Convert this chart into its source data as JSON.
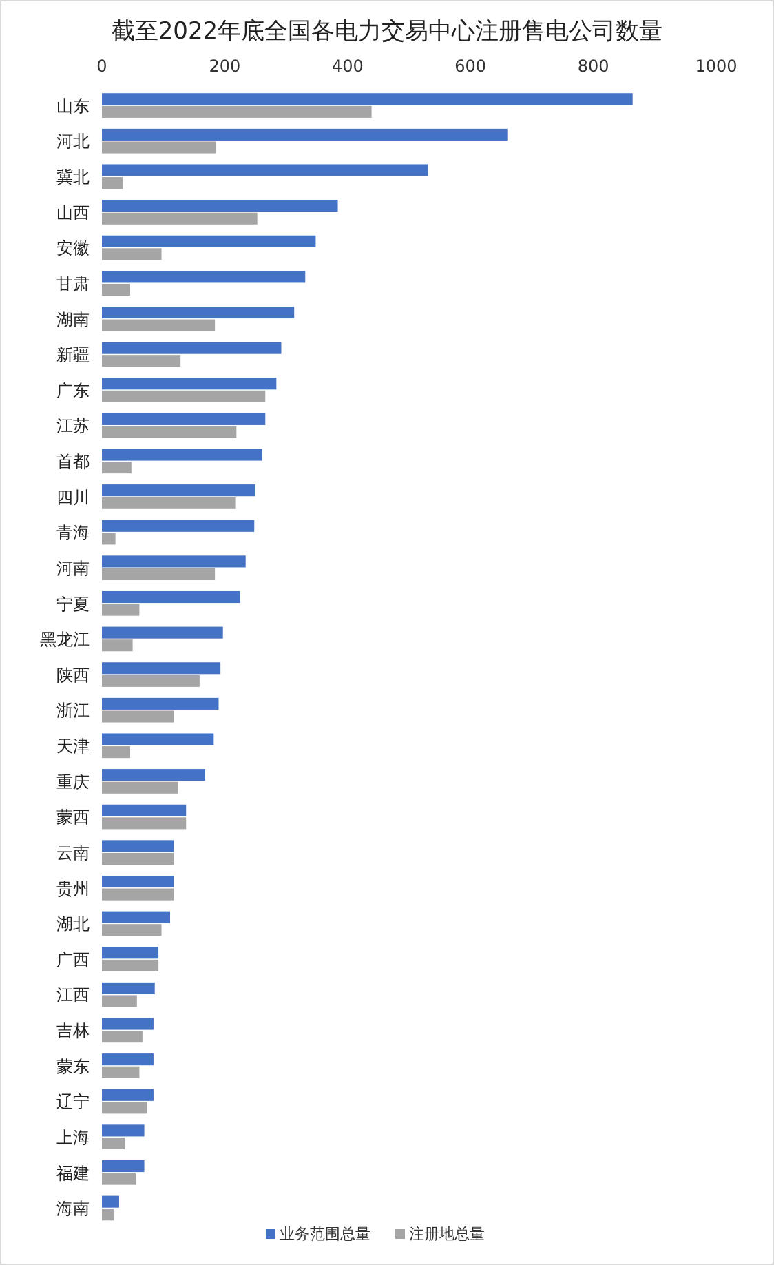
{
  "chart_data": {
    "type": "bar",
    "orientation": "horizontal",
    "title": "截至2022年底全国各电力交易中心注册售电公司数量",
    "categories": [
      "山东",
      "河北",
      "冀北",
      "山西",
      "安徽",
      "甘肃",
      "湖南",
      "新疆",
      "广东",
      "江苏",
      "首都",
      "四川",
      "青海",
      "河南",
      "宁夏",
      "黑龙江",
      "陕西",
      "浙江",
      "天津",
      "重庆",
      "蒙西",
      "云南",
      "贵州",
      "湖北",
      "广西",
      "江西",
      "吉林",
      "蒙东",
      "辽宁",
      "上海",
      "福建",
      "海南"
    ],
    "series": [
      {
        "name": "业务范围总量",
        "color": "#4472c4",
        "values": [
          864,
          660,
          531,
          384,
          348,
          331,
          313,
          292,
          284,
          266,
          261,
          250,
          248,
          234,
          225,
          197,
          193,
          190,
          182,
          168,
          137,
          117,
          117,
          111,
          92,
          86,
          84,
          84,
          84,
          69,
          69,
          28
        ]
      },
      {
        "name": "注册地总量",
        "color": "#a5a5a5",
        "values": [
          439,
          186,
          34,
          253,
          97,
          46,
          184,
          128,
          266,
          219,
          48,
          217,
          22,
          184,
          61,
          50,
          159,
          117,
          46,
          124,
          137,
          117,
          117,
          97,
          92,
          57,
          66,
          61,
          73,
          37,
          55,
          19
        ]
      }
    ],
    "xlim": [
      0,
      1000
    ],
    "xticks": [
      0,
      200,
      400,
      600,
      800,
      1000
    ],
    "legend": "bottom",
    "grid": false
  }
}
